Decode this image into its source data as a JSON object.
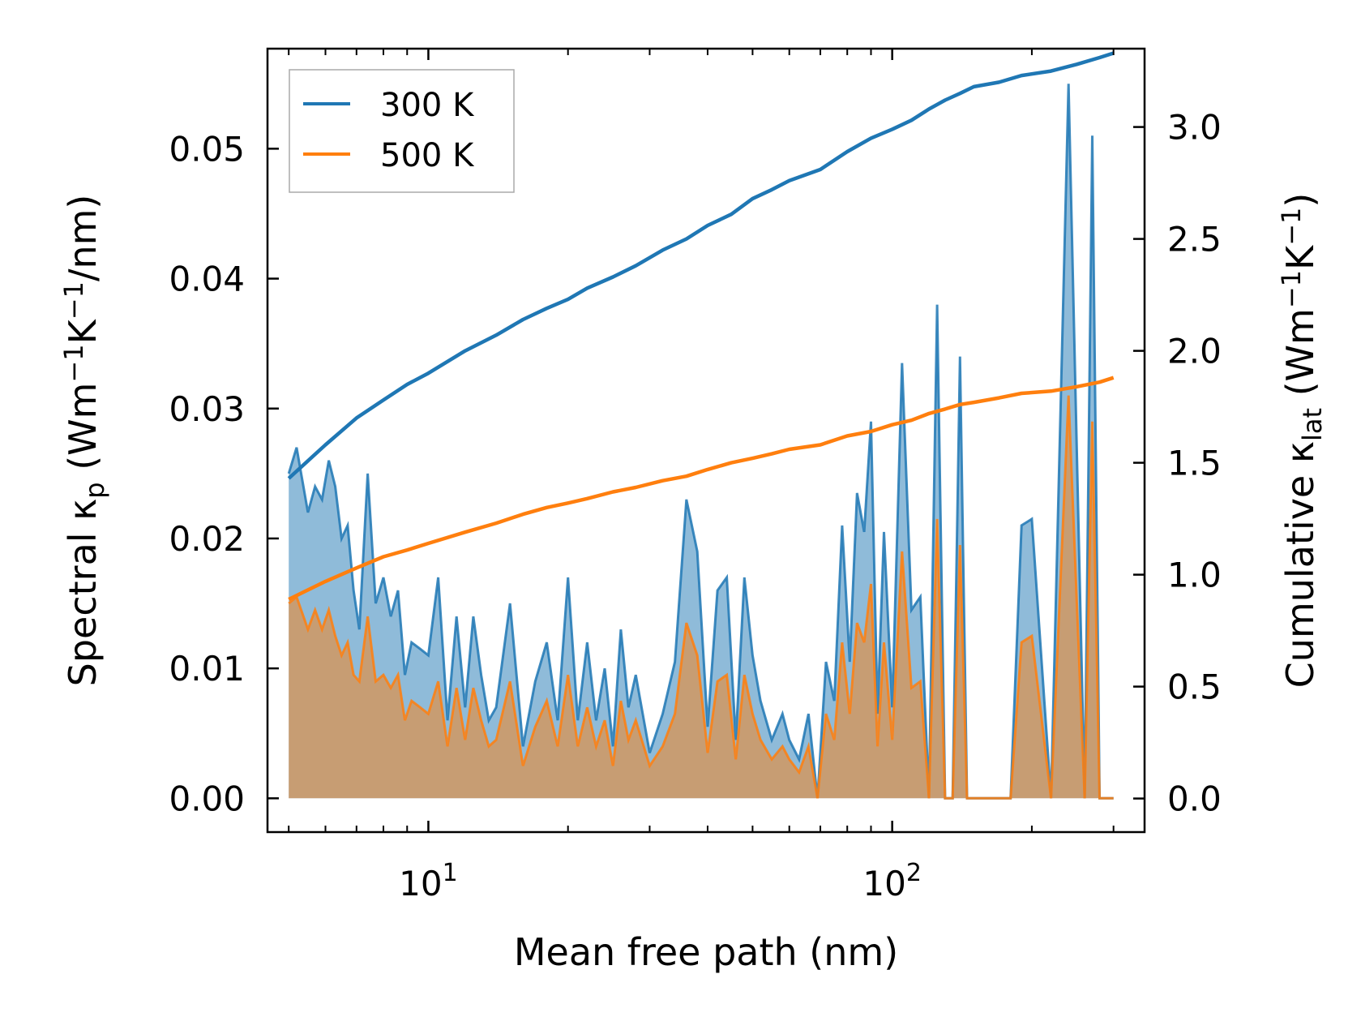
{
  "chart_data": {
    "type": "line",
    "xscale": "log",
    "xlabel": "Mean free path (nm)",
    "ylabel_left": "Spectral κ_p (Wm⁻¹K⁻¹/nm)",
    "ylabel_right": "Cumulative κ_lat (Wm⁻¹K⁻¹)",
    "xlim": [
      4.5,
      350
    ],
    "ylim_left": [
      -0.0026,
      0.0577
    ],
    "ylim_right": [
      -0.15,
      3.35
    ],
    "x_ticks": [
      {
        "value": 10,
        "label": "10",
        "exp": "1"
      },
      {
        "value": 100,
        "label": "10",
        "exp": "2"
      }
    ],
    "y_ticks_left": [
      {
        "value": 0.0,
        "label": "0.00"
      },
      {
        "value": 0.01,
        "label": "0.01"
      },
      {
        "value": 0.02,
        "label": "0.02"
      },
      {
        "value": 0.03,
        "label": "0.03"
      },
      {
        "value": 0.04,
        "label": "0.04"
      },
      {
        "value": 0.05,
        "label": "0.05"
      }
    ],
    "y_ticks_right": [
      {
        "value": 0.0,
        "label": "0.0"
      },
      {
        "value": 0.5,
        "label": "0.5"
      },
      {
        "value": 1.0,
        "label": "1.0"
      },
      {
        "value": 1.5,
        "label": "1.5"
      },
      {
        "value": 2.0,
        "label": "2.0"
      },
      {
        "value": 2.5,
        "label": "2.5"
      },
      {
        "value": 3.0,
        "label": "3.0"
      }
    ],
    "legend": {
      "position": "top-left",
      "entries": [
        {
          "name": "300 K",
          "color": "#1f77b4"
        },
        {
          "name": "500 K",
          "color": "#ff7f0e"
        }
      ]
    },
    "series": [
      {
        "name": "300 K",
        "color": "#1f77b4",
        "axis": "left",
        "kind": "spectral-filled",
        "x": [
          5,
          5.2,
          5.5,
          5.7,
          5.9,
          6.1,
          6.3,
          6.5,
          6.7,
          6.9,
          7.1,
          7.4,
          7.7,
          8,
          8.3,
          8.6,
          8.9,
          9.2,
          9.6,
          10,
          10.5,
          11,
          11.5,
          12,
          12.5,
          13,
          13.5,
          14,
          15,
          16,
          17,
          18,
          19,
          20,
          21,
          22,
          23,
          24,
          25,
          26,
          27,
          28,
          30,
          32,
          34,
          36,
          38,
          40,
          42,
          44,
          46,
          48,
          50,
          52,
          55,
          58,
          60,
          63,
          66,
          69,
          72,
          75,
          78,
          81,
          84,
          87,
          90,
          93,
          96,
          100,
          105,
          110,
          115,
          120,
          125,
          130,
          135,
          140,
          145,
          150,
          160,
          170,
          180,
          190,
          200,
          220,
          240,
          260,
          270,
          280,
          290,
          300
        ],
        "values": [
          0.025,
          0.027,
          0.022,
          0.024,
          0.023,
          0.026,
          0.024,
          0.02,
          0.021,
          0.016,
          0.013,
          0.025,
          0.015,
          0.017,
          0.014,
          0.016,
          0.0095,
          0.012,
          0.0115,
          0.011,
          0.017,
          0.006,
          0.014,
          0.007,
          0.014,
          0.0095,
          0.006,
          0.007,
          0.015,
          0.004,
          0.009,
          0.012,
          0.006,
          0.017,
          0.006,
          0.012,
          0.006,
          0.01,
          0.004,
          0.013,
          0.007,
          0.0095,
          0.0035,
          0.0065,
          0.0105,
          0.023,
          0.019,
          0.0055,
          0.016,
          0.017,
          0.0045,
          0.017,
          0.011,
          0.0075,
          0.0045,
          0.0065,
          0.0045,
          0.003,
          0.0065,
          0.0,
          0.0105,
          0.0075,
          0.021,
          0.0105,
          0.0235,
          0.0205,
          0.029,
          0.0065,
          0.0205,
          0.007,
          0.0335,
          0.0145,
          0.0155,
          0.0,
          0.038,
          0.0,
          0.0,
          0.034,
          0.0,
          0.0,
          0.0,
          0.0,
          0.0,
          0.021,
          0.0215,
          0.0,
          0.055,
          0.0,
          0.051,
          0.0,
          0.0,
          0.0
        ]
      },
      {
        "name": "500 K",
        "color": "#ff7f0e",
        "axis": "left",
        "kind": "spectral-filled",
        "x": [
          5,
          5.2,
          5.5,
          5.7,
          5.9,
          6.1,
          6.3,
          6.5,
          6.7,
          6.9,
          7.1,
          7.4,
          7.7,
          8,
          8.3,
          8.6,
          8.9,
          9.2,
          9.6,
          10,
          10.5,
          11,
          11.5,
          12,
          12.5,
          13,
          13.5,
          14,
          15,
          16,
          17,
          18,
          19,
          20,
          21,
          22,
          23,
          24,
          25,
          26,
          27,
          28,
          30,
          32,
          34,
          36,
          38,
          40,
          42,
          44,
          46,
          48,
          50,
          52,
          55,
          58,
          60,
          63,
          66,
          69,
          72,
          75,
          78,
          81,
          84,
          87,
          90,
          93,
          96,
          100,
          105,
          110,
          115,
          120,
          125,
          130,
          135,
          140,
          145,
          150,
          160,
          170,
          180,
          190,
          200,
          220,
          240,
          260,
          270,
          280,
          290,
          300
        ],
        "values": [
          0.015,
          0.0155,
          0.013,
          0.0145,
          0.013,
          0.0145,
          0.0125,
          0.011,
          0.012,
          0.0095,
          0.009,
          0.014,
          0.009,
          0.0095,
          0.0085,
          0.0095,
          0.006,
          0.0075,
          0.007,
          0.0065,
          0.009,
          0.004,
          0.0085,
          0.0045,
          0.0085,
          0.006,
          0.004,
          0.0045,
          0.009,
          0.0025,
          0.0055,
          0.0075,
          0.004,
          0.0095,
          0.004,
          0.007,
          0.004,
          0.006,
          0.0025,
          0.0075,
          0.0045,
          0.006,
          0.0025,
          0.004,
          0.0065,
          0.0135,
          0.011,
          0.0035,
          0.009,
          0.0095,
          0.003,
          0.0095,
          0.0065,
          0.0045,
          0.003,
          0.004,
          0.003,
          0.002,
          0.004,
          0.0,
          0.0065,
          0.0045,
          0.012,
          0.0065,
          0.0135,
          0.012,
          0.0165,
          0.004,
          0.012,
          0.0045,
          0.019,
          0.0085,
          0.009,
          0.0,
          0.0215,
          0.0,
          0.0,
          0.0195,
          0.0,
          0.0,
          0.0,
          0.0,
          0.0,
          0.012,
          0.0125,
          0.0,
          0.031,
          0.0,
          0.029,
          0.0,
          0.0,
          0.0
        ]
      },
      {
        "name": "300 K",
        "color": "#1f77b4",
        "axis": "right",
        "kind": "cumulative",
        "x": [
          5,
          6,
          7,
          8,
          9,
          10,
          12,
          14,
          16,
          18,
          20,
          22,
          25,
          28,
          32,
          36,
          40,
          45,
          50,
          55,
          60,
          70,
          80,
          90,
          100,
          110,
          120,
          130,
          140,
          150,
          170,
          190,
          220,
          250,
          280,
          300
        ],
        "values": [
          1.43,
          1.58,
          1.7,
          1.78,
          1.85,
          1.9,
          2.0,
          2.07,
          2.14,
          2.19,
          2.23,
          2.28,
          2.33,
          2.38,
          2.45,
          2.5,
          2.56,
          2.61,
          2.68,
          2.72,
          2.76,
          2.81,
          2.89,
          2.95,
          2.99,
          3.03,
          3.08,
          3.12,
          3.15,
          3.18,
          3.2,
          3.23,
          3.25,
          3.28,
          3.31,
          3.33
        ]
      },
      {
        "name": "500 K",
        "color": "#ff7f0e",
        "axis": "right",
        "kind": "cumulative",
        "x": [
          5,
          6,
          7,
          8,
          9,
          10,
          12,
          14,
          16,
          18,
          20,
          22,
          25,
          28,
          32,
          36,
          40,
          45,
          50,
          55,
          60,
          70,
          80,
          90,
          100,
          110,
          120,
          130,
          140,
          150,
          170,
          190,
          220,
          250,
          280,
          300
        ],
        "values": [
          0.89,
          0.97,
          1.03,
          1.08,
          1.11,
          1.14,
          1.19,
          1.23,
          1.27,
          1.3,
          1.32,
          1.34,
          1.37,
          1.39,
          1.42,
          1.44,
          1.47,
          1.5,
          1.52,
          1.54,
          1.56,
          1.58,
          1.62,
          1.64,
          1.67,
          1.69,
          1.72,
          1.74,
          1.76,
          1.77,
          1.79,
          1.81,
          1.82,
          1.84,
          1.86,
          1.88
        ]
      }
    ]
  }
}
